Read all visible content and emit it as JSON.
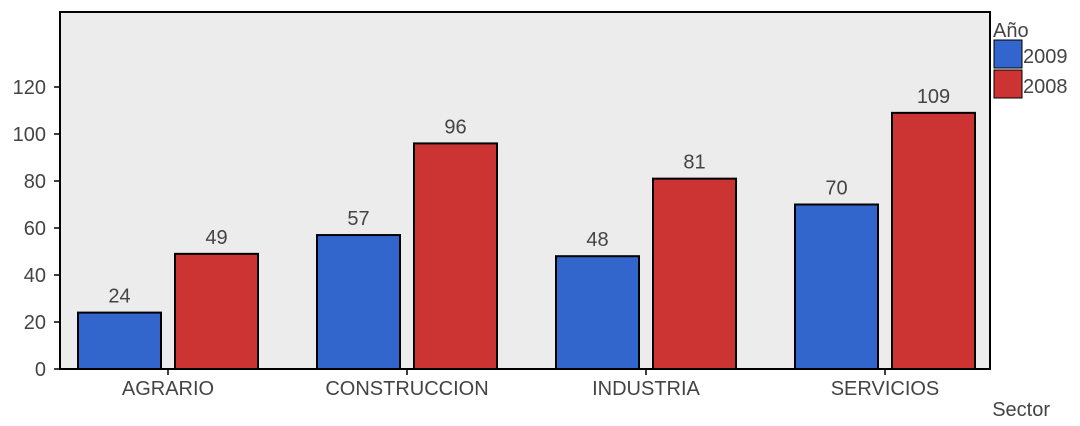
{
  "chart_data": {
    "type": "bar",
    "categories": [
      "AGRARIO",
      "CONSTRUCCION",
      "INDUSTRIA",
      "SERVICIOS"
    ],
    "series": [
      {
        "name": "2009",
        "values": [
          24,
          57,
          48,
          70
        ],
        "color": "#3366cc"
      },
      {
        "name": "2008",
        "values": [
          49,
          96,
          81,
          109
        ],
        "color": "#cc3333"
      }
    ],
    "xlabel": "Sector",
    "ylabel": "",
    "ylim": [
      0,
      150
    ],
    "yticks": [
      0,
      20,
      40,
      60,
      80,
      100,
      120
    ],
    "legend": {
      "title": "Año",
      "position": "top-right"
    },
    "data_labels": true,
    "grid": false,
    "plot_background": "#ececec",
    "bar_outline": "#000000"
  }
}
